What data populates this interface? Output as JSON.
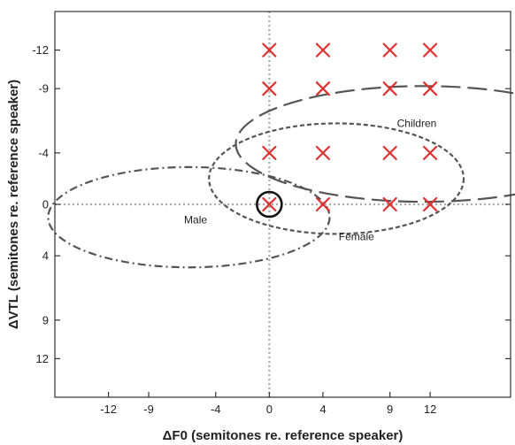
{
  "chart_data": {
    "type": "scatter",
    "title": "",
    "xlabel": "ΔF0 (semitones re. reference speaker)",
    "ylabel": "ΔVTL (semitones re. reference speaker)",
    "xlim": [
      -16,
      18
    ],
    "ylim": [
      -15,
      15
    ],
    "y_axis_reversed": true,
    "x_ticks": [
      -12,
      -9,
      -4,
      0,
      4,
      9,
      12
    ],
    "x_tick_labels": [
      "-12",
      "-9",
      "-4",
      "0",
      "4",
      "9",
      "12"
    ],
    "y_ticks": [
      -12,
      -9,
      -4,
      0,
      4,
      9,
      12
    ],
    "y_tick_labels": [
      "-12",
      "-9",
      "-4",
      "0",
      "4",
      "9",
      "12"
    ],
    "grid": false,
    "reference_lines": {
      "x": 0,
      "y": 0,
      "style": "dotted",
      "color": "#aaaaaa"
    },
    "marker_color": "#e03030",
    "points": [
      {
        "x": 0,
        "y": -12
      },
      {
        "x": 4,
        "y": -12
      },
      {
        "x": 9,
        "y": -12
      },
      {
        "x": 12,
        "y": -12
      },
      {
        "x": 0,
        "y": -9
      },
      {
        "x": 4,
        "y": -9
      },
      {
        "x": 9,
        "y": -9
      },
      {
        "x": 12,
        "y": -9
      },
      {
        "x": 0,
        "y": -4
      },
      {
        "x": 4,
        "y": -4
      },
      {
        "x": 9,
        "y": -4
      },
      {
        "x": 12,
        "y": -4
      },
      {
        "x": 0,
        "y": 0
      },
      {
        "x": 4,
        "y": 0
      },
      {
        "x": 9,
        "y": 0
      },
      {
        "x": 12,
        "y": 0
      }
    ],
    "reference_point": {
      "x": 0,
      "y": 0
    },
    "regions": [
      {
        "label": "Male",
        "cx": -6,
        "cy": 1,
        "rx": 10.5,
        "ry": 3.9,
        "style": "dash-dot",
        "label_x": -5.5,
        "label_y": 1.2
      },
      {
        "label": "Female",
        "cx": 5,
        "cy": -2,
        "rx": 9.5,
        "ry": 4.3,
        "style": "short-dash",
        "label_x": 6.5,
        "label_y": 2.5
      },
      {
        "label": "Children",
        "cx": 11.5,
        "cy": -4.7,
        "rx": 14,
        "ry": 4.5,
        "style": "long-dash",
        "label_x": 11,
        "label_y": -6.3
      }
    ]
  }
}
